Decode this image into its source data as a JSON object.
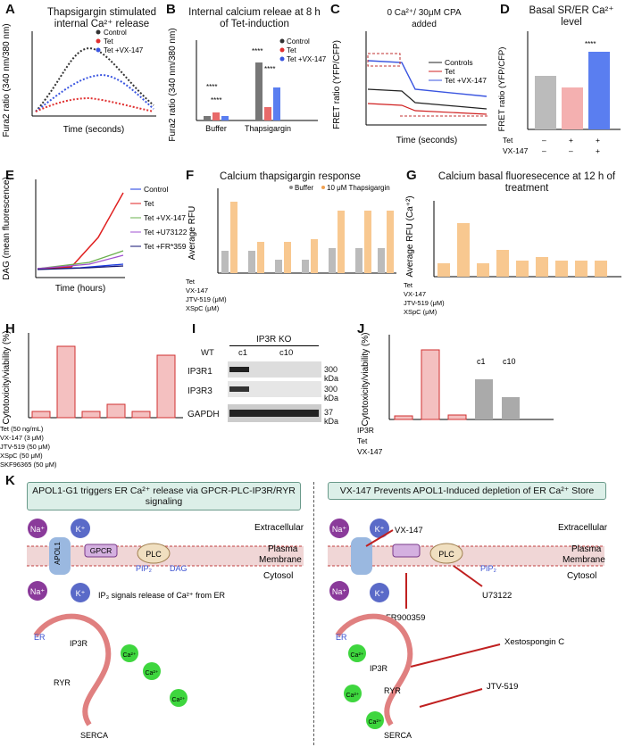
{
  "labels": [
    "A",
    "B",
    "C",
    "D",
    "E",
    "F",
    "G",
    "H",
    "I",
    "J",
    "K"
  ],
  "panelA": {
    "title": "Thapsigargin stimulated internal Ca²⁺ release",
    "ylabel": "Fura2 ratio (340 nm/380 nm)",
    "xlabel": "Time (seconds)",
    "legend": [
      "Control",
      "Tet",
      "Tet +VX-147"
    ]
  },
  "panelB": {
    "title": "Internal calcium releae at 8 h of Tet-induction",
    "ylabel": "Fura2 ratio (340 nm/380 nm)",
    "legend": [
      "Control",
      "Tet",
      "Tet +VX-147"
    ],
    "sig": "****"
  },
  "panelC": {
    "annotation": "0 Ca²⁺/ 30μM CPA added",
    "ylabel": "FRET ratio (YFP/CFP)",
    "xlabel": "Time (seconds)",
    "legend": [
      "Controls",
      "Tet",
      "Tet +VX-147"
    ]
  },
  "panelD": {
    "title": "Basal SR/ER Ca²⁺ level",
    "ylabel": "FRET ratio (YFP/CFP)",
    "rows": [
      "Tet",
      "VX-147"
    ],
    "sig": "****"
  },
  "panelE": {
    "ylabel": "DAG (mean fluorescence)",
    "xlabel": "Time (hours)",
    "legend": [
      "Control",
      "Tet",
      "Tet +VX-147",
      "Tet +U73122",
      "Tet +FR*359"
    ]
  },
  "panelF": {
    "title": "Calcium thapsigargin response",
    "ylabel": "Average RFU",
    "legend": [
      "Buffer",
      "10 μM Thapsigargin"
    ],
    "rows": [
      "Tet",
      "VX-147",
      "JTV-519 (μM)",
      "XSpC (μM)"
    ]
  },
  "panelG": {
    "title": "Calcium basal fluoresecence at 12 h of treatment",
    "ylabel": "Average RFU (Ca⁺²)",
    "rows": [
      "Tet",
      "VX-147",
      "JTV-519 (μM)",
      "XSpC (μM)"
    ]
  },
  "panelH": {
    "ylabel": "Cytotoxicity/viability (%)",
    "rows": [
      "Tet (50 ng/mL)",
      "VX-147 (3 μM)",
      "JTV-519 (50 μM)",
      "XSpC (50 μM)",
      "SKF96365 (50 μM)"
    ]
  },
  "panelI": {
    "header": "IP3R KO",
    "lanes": [
      "WT",
      "c1",
      "c10"
    ],
    "proteins": [
      "IP3R1",
      "IP3R3",
      "GAPDH"
    ],
    "sizes": [
      "300 kDa",
      "300 kDa",
      "37 kDa"
    ]
  },
  "panelJ": {
    "ylabel": "Cytotoxicity/viability (%)",
    "rows": [
      "IP3R",
      "Tet",
      "VX-147"
    ],
    "clones": [
      "c1",
      "c10"
    ]
  },
  "panelK": {
    "left_title": "APOL1-G1 triggers ER Ca²⁺ release via GPCR-PLC-IP3R/RYR signaling",
    "right_title": "VX-147 Prevents APOL1-Induced depletion of ER Ca²⁺ Store",
    "extracellular": "Extracellular",
    "plasma": "Plasma",
    "membrane": "Membrane",
    "cytosol": "Cytosol",
    "ip3_text": "IP₃ signals release of Ca²⁺ from ER",
    "inhibitors": [
      "VX-147",
      "U73122",
      "FR900359",
      "Xestospongin C",
      "JTV-519"
    ],
    "er": "ER",
    "serca": "SERCA",
    "ip3r": "IP3R",
    "ryr": "RYR",
    "dag": "DAG",
    "plc": "PLC",
    "pip2": "PIP₂",
    "gpcr": "GPCR",
    "apol1": "APOL1",
    "ions": [
      "Na⁺",
      "K⁺",
      "Ca²⁺"
    ]
  }
}
